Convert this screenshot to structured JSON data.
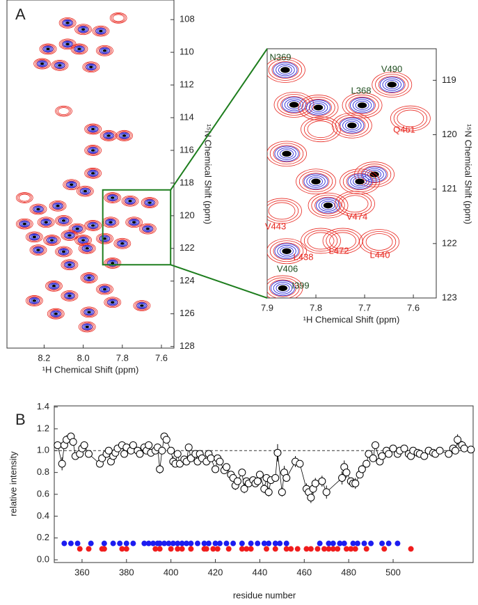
{
  "chart_data": [
    {
      "type": "contour",
      "panel": "A",
      "xlabel": "¹H Chemical Shift (ppm)",
      "ylabel": "¹⁵N Chemical Shift (ppm)",
      "xlim": [
        8.39,
        7.536
      ],
      "ylim": [
        128.1,
        106.8
      ],
      "xticks": [
        8.2,
        {
          "value": 8,
          "label": "8.0"
        },
        7.8,
        7.6
      ],
      "yticks": [
        108,
        110,
        112,
        114,
        116,
        118,
        120,
        122,
        124,
        126,
        128
      ],
      "yaxis_side": "right",
      "colors": [
        "#e8261e",
        "#2b2bd6",
        "#000000"
      ],
      "peaks": {
        "x": [
          8.08,
          8.0,
          7.91,
          8.18,
          8.08,
          8.02,
          7.89,
          8.21,
          8.12,
          7.96,
          7.95,
          7.87,
          7.79,
          7.95,
          7.95,
          8.06,
          7.99,
          7.85,
          7.76,
          7.66,
          8.13,
          8.23,
          8.3,
          8.19,
          8.1,
          8.03,
          7.95,
          7.86,
          7.74,
          7.67,
          8.25,
          8.16,
          8.07,
          8.0,
          7.89,
          7.8,
          8.23,
          8.1,
          7.98,
          8.07,
          7.85,
          7.97,
          8.15,
          7.89,
          8.07,
          8.25,
          7.85,
          7.97,
          8.14,
          7.7,
          7.98
        ],
        "y": [
          108.2,
          108.6,
          108.7,
          109.8,
          109.5,
          109.8,
          109.9,
          110.7,
          110.8,
          110.9,
          114.7,
          115.1,
          115.1,
          116.0,
          117.4,
          118.1,
          118.5,
          118.9,
          119.1,
          119.2,
          119.4,
          119.6,
          120.5,
          120.4,
          120.3,
          120.8,
          120.6,
          120.4,
          120.4,
          120.8,
          121.3,
          121.5,
          121.2,
          121.5,
          121.4,
          121.7,
          122.1,
          122.2,
          122.0,
          123.0,
          122.9,
          123.8,
          124.3,
          124.5,
          124.9,
          125.2,
          125.3,
          125.9,
          126.0,
          125.5,
          126.8
        ]
      },
      "red_peaks": {
        "x": [
          7.82,
          8.3,
          8.1
        ],
        "y": [
          107.9,
          118.9,
          113.6
        ]
      }
    },
    {
      "type": "contour",
      "xlabel": "¹H Chemical Shift (ppm)",
      "ylabel": "¹⁵N Chemical Shift (ppm)",
      "xlim": [
        7.9,
        7.553
      ],
      "ylim": [
        123,
        118.42
      ],
      "xticks": [
        7.9,
        7.8,
        7.7,
        7.6
      ],
      "yticks": [
        119,
        120,
        121,
        122,
        123
      ],
      "yaxis_side": "right",
      "colors": [
        "#e8261e",
        "#2b2bd6",
        "#000000"
      ],
      "peaks": {
        "x": [
          7.863,
          7.644,
          7.705,
          7.845,
          7.795,
          7.726,
          7.86,
          7.68,
          7.8,
          7.71,
          7.775,
          7.86,
          7.868
        ],
        "y": [
          118.81,
          119.08,
          119.46,
          119.45,
          119.5,
          119.83,
          120.35,
          120.73,
          120.86,
          120.86,
          121.3,
          122.14,
          122.82
        ]
      },
      "red_peaks": {
        "x": [
          7.606,
          7.79,
          7.72,
          7.87,
          7.79,
          7.745,
          7.67
        ],
        "y": [
          119.7,
          119.9,
          121.27,
          121.4,
          121.95,
          121.95,
          121.97
        ]
      },
      "annotations": [
        {
          "text": "N369",
          "color": "#1e4d1e"
        },
        {
          "text": "V490",
          "color": "#1e4d1e"
        },
        {
          "text": "L368",
          "color": "#1e4d1e"
        },
        {
          "text": "Q461",
          "color": "#e8261e"
        },
        {
          "text": "V443",
          "color": "#e8261e"
        },
        {
          "text": "V474",
          "color": "#e8261e"
        },
        {
          "text": "L472",
          "color": "#e8261e"
        },
        {
          "text": "L438",
          "color": "#e8261e"
        },
        {
          "text": "L440",
          "color": "#e8261e"
        },
        {
          "text": "V406",
          "color": "#1e4d1e"
        },
        {
          "text": "I399",
          "color": "#1e4d1e"
        }
      ]
    },
    {
      "type": "scatter",
      "panel": "B",
      "xlabel": "residue number",
      "ylabel": "relative intensity",
      "xlim": [
        347.5,
        536
      ],
      "ylim": [
        -0.025,
        1.41
      ],
      "xticks": [
        360,
        380,
        400,
        420,
        440,
        460,
        480,
        500
      ],
      "yticks": [
        {
          "value": 0,
          "label": "0.0"
        },
        0.2,
        0.4,
        0.6,
        0.8,
        {
          "value": 1,
          "label": "1.0"
        },
        1.2,
        1.4
      ],
      "yaxis_side": "left",
      "reference_line": 1,
      "series": [
        {
          "marker": "open-circle",
          "color": "#000000",
          "x": [
            349,
            351,
            352,
            353,
            355,
            356,
            357,
            359,
            360,
            361,
            363,
            368,
            369,
            371,
            372,
            373,
            374,
            375,
            376,
            378,
            379,
            380,
            382,
            383,
            385,
            386,
            388,
            389,
            390,
            391,
            393,
            394,
            395,
            396,
            397,
            398,
            400,
            401,
            402,
            403,
            404,
            406,
            407,
            408,
            409,
            411,
            412,
            413,
            414,
            416,
            417,
            418,
            420,
            421,
            422,
            424,
            425,
            427,
            428,
            429,
            430,
            432,
            433,
            434,
            435,
            437,
            438,
            439,
            440,
            442,
            443,
            444,
            445,
            447,
            448,
            450,
            451,
            452,
            456,
            458,
            461,
            462,
            463,
            464,
            465,
            468,
            470,
            477,
            478,
            479,
            481,
            482,
            483,
            485,
            486,
            488,
            489,
            491,
            492,
            494,
            495,
            497,
            498,
            500,
            502,
            503,
            505,
            507,
            508,
            509,
            511,
            512,
            514,
            516,
            518,
            519,
            521,
            525,
            527,
            528,
            529,
            531,
            532,
            535
          ],
          "values": [
            1.05,
            0.88,
            1.05,
            1.1,
            1.13,
            1.08,
            0.95,
            0.97,
            1.02,
            1.05,
            0.97,
            0.88,
            0.93,
            0.97,
            1.0,
            0.9,
            0.95,
            0.98,
            1.02,
            1.05,
            0.97,
            1.03,
            1.0,
            1.05,
            1.0,
            0.97,
            1.03,
            1.0,
            1.05,
            0.98,
            1.0,
            1.03,
            0.83,
            1.0,
            1.13,
            1.1,
            1.0,
            0.9,
            0.88,
            0.97,
            0.88,
            0.92,
            0.9,
            1.03,
            0.93,
            0.97,
            0.9,
            0.97,
            0.93,
            0.9,
            0.97,
            0.93,
            0.83,
            0.93,
            0.9,
            0.82,
            0.85,
            0.78,
            0.75,
            0.68,
            0.72,
            0.8,
            0.65,
            0.72,
            0.7,
            0.73,
            0.7,
            0.72,
            0.78,
            0.65,
            0.75,
            0.62,
            0.73,
            0.75,
            0.98,
            0.62,
            0.8,
            0.75,
            0.9,
            0.88,
            0.65,
            0.62,
            0.57,
            0.65,
            0.7,
            0.72,
            0.62,
            0.75,
            0.85,
            0.8,
            0.72,
            0.7,
            0.7,
            0.78,
            0.83,
            0.88,
            0.97,
            0.93,
            1.05,
            0.9,
            0.95,
            1.0,
            0.97,
            1.02,
            0.97,
            1.0,
            1.02,
            0.97,
            0.95,
            1.0,
            0.98,
            0.97,
            0.95,
            1.0,
            0.98,
            0.97,
            1.0,
            0.97,
            1.02,
            1.0,
            1.1,
            1.05,
            1.02,
            1.01
          ],
          "errors": [
            0.03,
            0.06,
            0.03,
            0.04,
            0.03,
            0.03,
            0.03,
            0.03,
            0.03,
            0.03,
            0.03,
            0.03,
            0.03,
            0.03,
            0.03,
            0.03,
            0.03,
            0.03,
            0.03,
            0.03,
            0.03,
            0.03,
            0.03,
            0.03,
            0.03,
            0.03,
            0.03,
            0.03,
            0.03,
            0.03,
            0.03,
            0.03,
            0.04,
            0.03,
            0.03,
            0.03,
            0.03,
            0.05,
            0.03,
            0.03,
            0.03,
            0.03,
            0.03,
            0.03,
            0.03,
            0.03,
            0.03,
            0.03,
            0.03,
            0.03,
            0.03,
            0.03,
            0.03,
            0.03,
            0.03,
            0.03,
            0.03,
            0.03,
            0.03,
            0.04,
            0.03,
            0.03,
            0.04,
            0.03,
            0.03,
            0.03,
            0.03,
            0.03,
            0.03,
            0.04,
            0.03,
            0.04,
            0.03,
            0.03,
            0.08,
            0.04,
            0.06,
            0.03,
            0.05,
            0.03,
            0.05,
            0.05,
            0.05,
            0.05,
            0.05,
            0.05,
            0.06,
            0.06,
            0.06,
            0.05,
            0.03,
            0.03,
            0.05,
            0.03,
            0.04,
            0.03,
            0.03,
            0.03,
            0.03,
            0.03,
            0.03,
            0.03,
            0.03,
            0.03,
            0.03,
            0.03,
            0.03,
            0.03,
            0.03,
            0.03,
            0.03,
            0.03,
            0.03,
            0.03,
            0.03,
            0.03,
            0.03,
            0.03,
            0.03,
            0.03,
            0.05,
            0.04,
            0.03,
            0.03
          ]
        },
        {
          "marker": "dot",
          "color": "#1c1cf0",
          "x": [
            352,
            355,
            358,
            364,
            370,
            374,
            377,
            380,
            383,
            388,
            390,
            392,
            394,
            395,
            397,
            399,
            401,
            403,
            405,
            407,
            409,
            412,
            415,
            417,
            420,
            422,
            425,
            428,
            432,
            436,
            439,
            442,
            444,
            447,
            449,
            452,
            467,
            471,
            473,
            476,
            478,
            482,
            484,
            487,
            490,
            495,
            498,
            502
          ],
          "values": [
            0.15,
            0.15,
            0.15,
            0.15,
            0.15,
            0.15,
            0.15,
            0.15,
            0.15,
            0.15,
            0.15,
            0.15,
            0.15,
            0.15,
            0.15,
            0.15,
            0.15,
            0.15,
            0.15,
            0.15,
            0.15,
            0.15,
            0.15,
            0.15,
            0.15,
            0.15,
            0.15,
            0.15,
            0.15,
            0.15,
            0.15,
            0.15,
            0.15,
            0.15,
            0.15,
            0.15,
            0.15,
            0.15,
            0.15,
            0.15,
            0.15,
            0.15,
            0.15,
            0.15,
            0.15,
            0.15,
            0.15,
            0.15
          ]
        },
        {
          "marker": "dot",
          "color": "#f01c1c",
          "x": [
            359,
            363,
            369,
            370,
            378,
            380,
            393,
            395,
            400,
            403,
            405,
            409,
            415,
            416,
            419,
            421,
            426,
            432,
            434,
            436,
            443,
            447,
            452,
            454,
            457,
            461,
            463,
            466,
            469,
            471,
            473,
            475,
            479,
            481,
            483,
            488,
            496,
            508
          ],
          "values": [
            0.1,
            0.1,
            0.1,
            0.1,
            0.1,
            0.1,
            0.1,
            0.1,
            0.1,
            0.1,
            0.1,
            0.1,
            0.1,
            0.1,
            0.1,
            0.1,
            0.1,
            0.1,
            0.1,
            0.1,
            0.1,
            0.1,
            0.1,
            0.1,
            0.1,
            0.1,
            0.1,
            0.1,
            0.1,
            0.1,
            0.1,
            0.1,
            0.1,
            0.1,
            0.1,
            0.1,
            0.1,
            0.1
          ]
        }
      ]
    }
  ]
}
